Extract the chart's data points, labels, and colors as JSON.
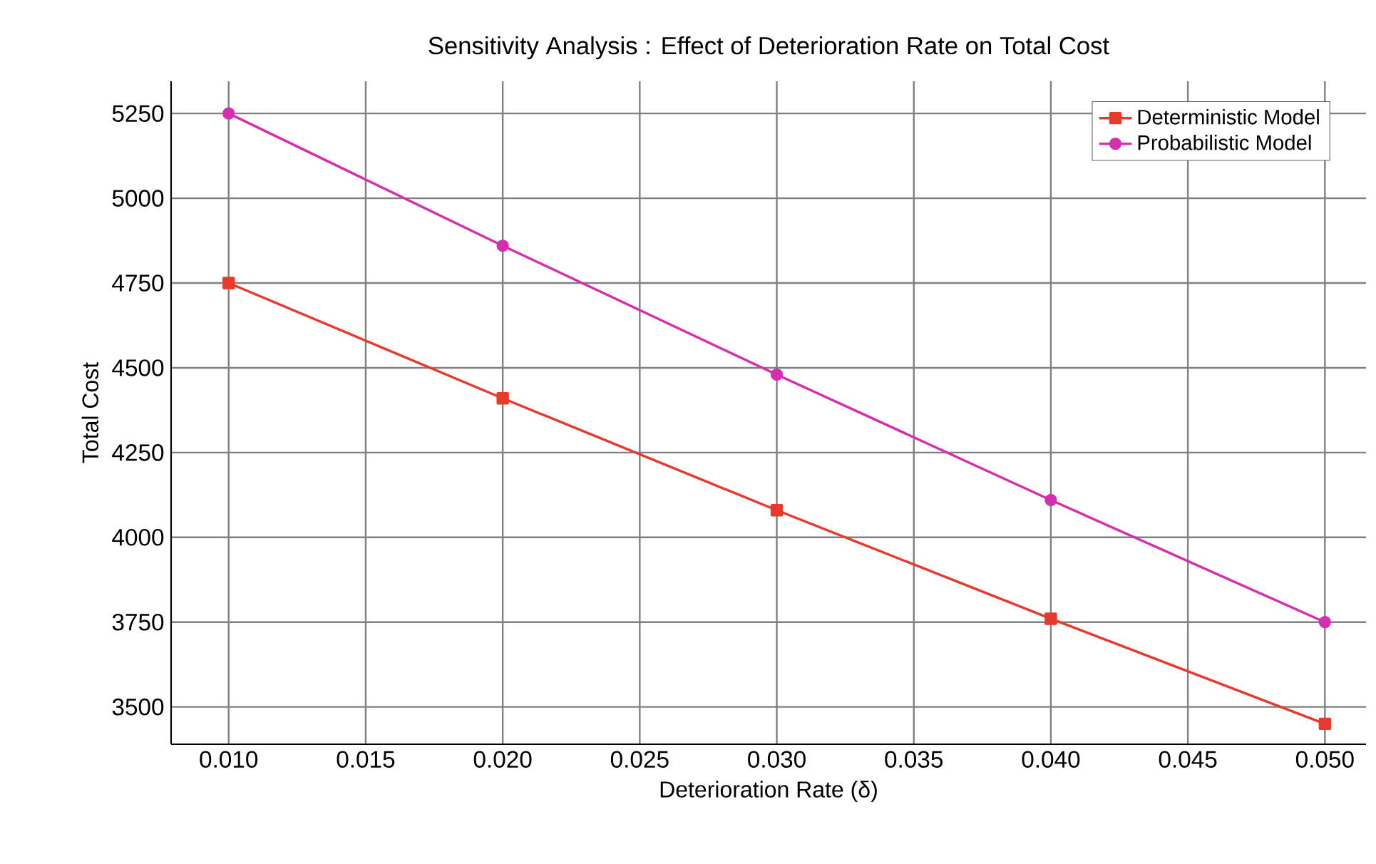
{
  "chart_data": {
    "type": "line",
    "title": "Sensitivity Analysis : Effect of Deterioration Rate on Total Cost",
    "xlabel": "Deterioration Rate (δ)",
    "ylabel": "Total Cost",
    "x": [
      0.01,
      0.02,
      0.03,
      0.04,
      0.05
    ],
    "series": [
      {
        "name": "Deterministic Model",
        "color": "#e63a2c",
        "marker": "square",
        "values": [
          4750,
          4410,
          4080,
          3760,
          3450
        ]
      },
      {
        "name": "Probabilistic Model",
        "color": "#d42fae",
        "marker": "circle",
        "values": [
          5250,
          4860,
          4480,
          4110,
          3750
        ]
      }
    ],
    "xlim": [
      0.0079,
      0.0515
    ],
    "ylim": [
      3390,
      5345
    ],
    "xticks": [
      {
        "value": 0.01,
        "label": "0.010"
      },
      {
        "value": 0.015,
        "label": "0.015"
      },
      {
        "value": 0.02,
        "label": "0.020"
      },
      {
        "value": 0.025,
        "label": "0.025"
      },
      {
        "value": 0.03,
        "label": "0.030"
      },
      {
        "value": 0.035,
        "label": "0.035"
      },
      {
        "value": 0.04,
        "label": "0.040"
      },
      {
        "value": 0.045,
        "label": "0.045"
      },
      {
        "value": 0.05,
        "label": "0.050"
      }
    ],
    "yticks": [
      3500,
      3750,
      4000,
      4250,
      4500,
      4750,
      5000,
      5250
    ],
    "grid": true,
    "legend": "top right",
    "line_style": "solid"
  }
}
